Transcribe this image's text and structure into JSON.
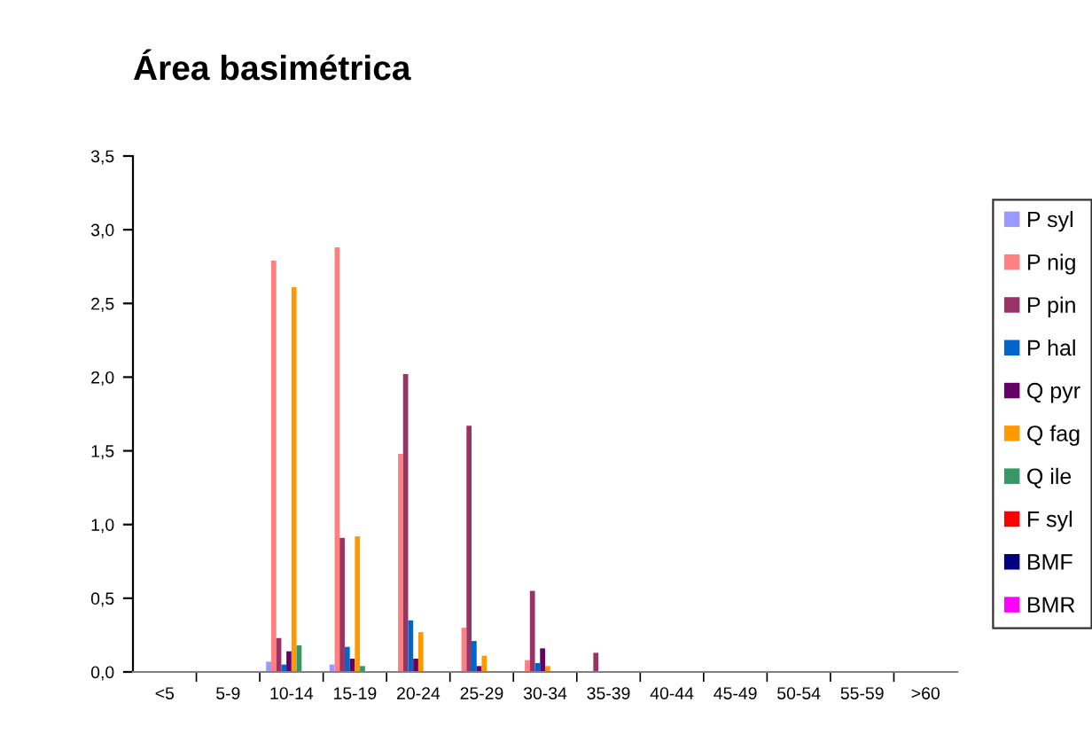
{
  "chart_data": {
    "type": "bar",
    "title": "Área basimétrica",
    "categories": [
      "<5",
      "5-9",
      "10-14",
      "15-19",
      "20-24",
      "25-29",
      "30-34",
      "35-39",
      "40-44",
      "45-49",
      "50-54",
      "55-59",
      ">60"
    ],
    "series": [
      {
        "name": "P syl",
        "color": "#9999ff",
        "values": [
          0,
          0,
          0.07,
          0.05,
          null,
          0,
          0,
          0,
          0,
          0,
          0,
          0,
          0
        ]
      },
      {
        "name": "P nig",
        "color": "#ff8080",
        "values": [
          0,
          0,
          2.79,
          2.88,
          1.48,
          0.3,
          0.08,
          0,
          0,
          0,
          0,
          0,
          0
        ]
      },
      {
        "name": "P pin",
        "color": "#993366",
        "values": [
          0,
          0,
          0.23,
          0.91,
          2.02,
          1.67,
          0.55,
          0.13,
          0,
          0,
          0,
          0,
          0
        ]
      },
      {
        "name": "P hal",
        "color": "#0066cc",
        "values": [
          0,
          0,
          0.05,
          0.17,
          0.35,
          0.21,
          0.06,
          0,
          0,
          0,
          0,
          0,
          0
        ]
      },
      {
        "name": "Q pyr",
        "color": "#660066",
        "values": [
          0,
          0,
          0.14,
          0.09,
          0.09,
          0.04,
          0.16,
          0,
          0,
          0,
          0,
          0,
          0
        ]
      },
      {
        "name": "Q fag",
        "color": "#ff9900",
        "values": [
          0,
          0,
          2.61,
          0.92,
          0.27,
          0.11,
          0.04,
          0,
          0,
          0,
          0,
          0,
          0
        ]
      },
      {
        "name": "Q ile",
        "color": "#339966",
        "values": [
          0,
          0,
          0.18,
          0.04,
          null,
          0,
          0,
          0,
          0,
          0,
          0,
          0,
          0
        ]
      },
      {
        "name": "F syl",
        "color": "#ff0000",
        "values": [
          0,
          0,
          0,
          0,
          0,
          0,
          0,
          0,
          0,
          0,
          0,
          0,
          0
        ]
      },
      {
        "name": "BMF",
        "color": "#000080",
        "values": [
          0,
          0,
          null,
          0,
          0,
          0,
          0,
          0,
          0,
          0,
          0,
          0,
          0
        ]
      },
      {
        "name": "BMR",
        "color": "#ff00ff",
        "values": [
          0,
          0,
          0,
          0,
          0,
          0,
          0,
          0,
          0,
          0,
          0,
          0,
          0
        ]
      }
    ],
    "ylim": [
      0,
      3.5
    ],
    "yticks": [
      {
        "value": 0,
        "label": "0,0"
      },
      {
        "value": 0.5,
        "label": "0,5"
      },
      {
        "value": 1,
        "label": "1,0"
      },
      {
        "value": 1.5,
        "label": "1,5"
      },
      {
        "value": 2,
        "label": "2,0"
      },
      {
        "value": 2.5,
        "label": "2,5"
      },
      {
        "value": 3,
        "label": "3,0"
      },
      {
        "value": 3.5,
        "label": "3,5"
      }
    ],
    "grid": false,
    "legend": "right"
  }
}
